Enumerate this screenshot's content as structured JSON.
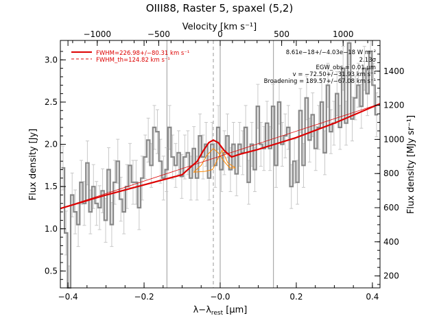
{
  "chart_data": {
    "type": "line",
    "title": "OIII88, Raster 5, spaxel (5,2)",
    "xlabel": "λ−λ_rest [μm]",
    "xlabel_main": "λ−λ",
    "xlabel_sub": "rest",
    "xlabel_unit": " [μm]",
    "ylabel": "Flux density [Jy]",
    "top_xlabel": "Velocity [km s⁻¹]",
    "right_ylabel": "Flux density [MJy sr⁻¹]",
    "xlim": [
      -0.42,
      0.42
    ],
    "ylim": [
      0.3,
      3.23
    ],
    "top_xlim": [
      -1300,
      1300
    ],
    "right_ylim": [
      130,
      1580
    ],
    "x_ticks": [
      -0.4,
      -0.2,
      0.0,
      0.2,
      0.4
    ],
    "x_tick_labels": [
      "−0.4",
      "−0.2",
      "−0.0",
      "0.2",
      "0.4"
    ],
    "y_ticks": [
      0.5,
      1.0,
      1.5,
      2.0,
      2.5,
      3.0
    ],
    "y_tick_labels": [
      "0.5",
      "1.0",
      "1.5",
      "2.0",
      "2.5",
      "3.0"
    ],
    "top_ticks": [
      -1000,
      -500,
      0,
      500,
      1000
    ],
    "top_tick_labels": [
      "−1000",
      "−500",
      "0",
      "500",
      "1000"
    ],
    "right_ticks": [
      200,
      400,
      600,
      800,
      1000,
      1200,
      1400
    ],
    "right_tick_labels": [
      "200",
      "400",
      "600",
      "800",
      "1000",
      "1200",
      "1400"
    ],
    "vertical_lines": {
      "solid": [
        -0.14,
        0.0,
        0.14
      ],
      "dashed": [
        -0.018
      ]
    },
    "legend": {
      "position": "top-left",
      "entries": [
        {
          "label": "FWHM=226.98+/−80.31 km s⁻¹",
          "style": "solid",
          "color": "#dd0000"
        },
        {
          "label": "FWHM_th=124.82 km s⁻¹",
          "style": "dashed",
          "color": "#dd0000"
        }
      ]
    },
    "annotations": [
      "8.61e−18+/−4.03e−18 W m⁻²",
      "2.13σ",
      "EGW_obs = 0.01 μm",
      "v = −72.50+/−31.93 km s⁻¹",
      "Broadening = 189.57+/−67.08 km s⁻¹"
    ],
    "series": [
      {
        "name": "",
        "style": "steps",
        "color": "#888888",
        "x": [
          -0.413,
          -0.405,
          -0.397,
          -0.389,
          -0.381,
          -0.373,
          -0.365,
          -0.357,
          -0.349,
          -0.341,
          -0.333,
          -0.325,
          -0.317,
          -0.309,
          -0.301,
          -0.293,
          -0.285,
          -0.277,
          -0.269,
          -0.261,
          -0.253,
          -0.245,
          -0.237,
          -0.229,
          -0.221,
          -0.213,
          -0.205,
          -0.197,
          -0.189,
          -0.181,
          -0.173,
          -0.165,
          -0.157,
          -0.149,
          -0.141,
          -0.133,
          -0.125,
          -0.117,
          -0.109,
          -0.101,
          -0.093,
          -0.085,
          -0.077,
          -0.069,
          -0.061,
          -0.053,
          -0.045,
          -0.037,
          -0.029,
          -0.021,
          -0.013,
          -0.005,
          0.003,
          0.011,
          0.019,
          0.027,
          0.035,
          0.043,
          0.051,
          0.059,
          0.067,
          0.075,
          0.083,
          0.091,
          0.099,
          0.107,
          0.115,
          0.123,
          0.131,
          0.139,
          0.147,
          0.155,
          0.163,
          0.171,
          0.179,
          0.187,
          0.195,
          0.203,
          0.211,
          0.219,
          0.227,
          0.235,
          0.243,
          0.251,
          0.259,
          0.267,
          0.275,
          0.283,
          0.291,
          0.299,
          0.307,
          0.315,
          0.323,
          0.331,
          0.339,
          0.347,
          0.355,
          0.363,
          0.371,
          0.379,
          0.387,
          0.395,
          0.403,
          0.411
        ],
        "values": [
          1.72,
          0.95,
          0.3,
          1.4,
          1.2,
          1.05,
          1.55,
          1.3,
          1.78,
          1.2,
          1.5,
          1.3,
          1.25,
          1.45,
          1.1,
          1.7,
          1.05,
          1.55,
          1.8,
          1.35,
          1.2,
          1.5,
          1.75,
          1.55,
          1.55,
          1.25,
          1.6,
          1.85,
          2.05,
          1.75,
          2.2,
          2.15,
          1.8,
          1.6,
          1.7,
          2.2,
          1.85,
          1.75,
          1.9,
          1.62,
          1.85,
          1.9,
          1.6,
          1.95,
          1.6,
          2.1,
          1.85,
          2.0,
          1.6,
          2.0,
          1.75,
          2.2,
          1.7,
          1.9,
          2.1,
          1.7,
          2.0,
          1.65,
          2.0,
          1.9,
          2.2,
          1.55,
          2.0,
          1.7,
          2.45,
          2.0,
          1.95,
          2.25,
          1.95,
          2.45,
          1.75,
          2.5,
          2.0,
          2.1,
          2.2,
          1.5,
          1.8,
          1.55,
          2.4,
          1.75,
          2.55,
          2.05,
          2.35,
          1.95,
          2.2,
          2.5,
          1.9,
          2.7,
          2.15,
          2.25,
          2.6,
          2.2,
          2.9,
          2.25,
          3.2,
          2.3,
          2.55,
          2.7,
          2.45,
          2.9,
          2.6,
          3.1,
          2.7,
          2.35
        ]
      },
      {
        "name": "",
        "style": "line",
        "color": "#dd0000",
        "x": [
          -0.42,
          -0.3,
          -0.2,
          -0.1,
          -0.06,
          -0.045,
          -0.03,
          -0.018,
          -0.005,
          0.01,
          0.03,
          0.05,
          0.1,
          0.2,
          0.3,
          0.42
        ],
        "values": [
          1.24,
          1.4,
          1.52,
          1.64,
          1.8,
          1.92,
          2.02,
          2.05,
          2.02,
          1.93,
          1.85,
          1.88,
          1.94,
          2.08,
          2.25,
          2.48
        ]
      },
      {
        "name": "",
        "style": "line",
        "color": "#ff8800",
        "x": [
          -0.07,
          -0.05,
          -0.035,
          -0.018,
          -0.005,
          0.01,
          0.025,
          0.04
        ],
        "values": [
          1.67,
          1.75,
          1.87,
          1.95,
          1.9,
          1.8,
          1.72,
          1.72
        ]
      },
      {
        "name": "",
        "style": "line",
        "color": "#ff8800",
        "x": [
          -0.07,
          -0.04,
          -0.02,
          0.005,
          0.02,
          0.04
        ],
        "values": [
          1.67,
          1.68,
          1.7,
          1.93,
          1.78,
          1.72
        ]
      }
    ]
  }
}
